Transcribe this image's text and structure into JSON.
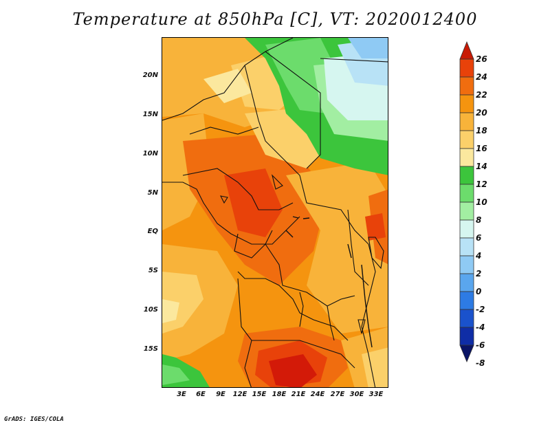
{
  "title": "Temperature at 850hPa [C], VT: 2020012400",
  "footer": "GrADS: IGES/COLA",
  "lat_labels": [
    "20N",
    "15N",
    "10N",
    "5N",
    "EQ",
    "5S",
    "10S",
    "15S"
  ],
  "lon_labels": [
    "3E",
    "6E",
    "9E",
    "12E",
    "15E",
    "18E",
    "21E",
    "24E",
    "27E",
    "30E",
    "33E"
  ],
  "colorbar": {
    "labels": [
      "26",
      "24",
      "22",
      "20",
      "18",
      "16",
      "14",
      "12",
      "10",
      "8",
      "6",
      "4",
      "2",
      "0",
      "-2",
      "-4",
      "-6",
      "-8"
    ],
    "colors": [
      "#c81a05",
      "#e8420a",
      "#f06d0f",
      "#f5940f",
      "#f8b33a",
      "#fbd06a",
      "#fbe89e",
      "#3cc53c",
      "#6cdc6c",
      "#a2eea2",
      "#d6f6f0",
      "#b8e2f6",
      "#8fcaf4",
      "#5aa6ee",
      "#2d7be4",
      "#1a52cc",
      "#0f2da6",
      "#0a1466"
    ]
  },
  "map": {
    "units": "C",
    "fill_colors": {
      "hot": "#d31a08",
      "warm_red": "#e8420a",
      "orange": "#f06d0f",
      "orange_light": "#f5940f",
      "gold": "#f8b33a",
      "yellow": "#fbd06a",
      "pale_yellow": "#fbe89e",
      "green": "#3cc53c",
      "green_light": "#6cdc6c",
      "green_pale": "#a2eea2",
      "cyan_pale": "#d6f6f0",
      "sky": "#b8e2f6",
      "blue": "#8fcaf4"
    }
  }
}
